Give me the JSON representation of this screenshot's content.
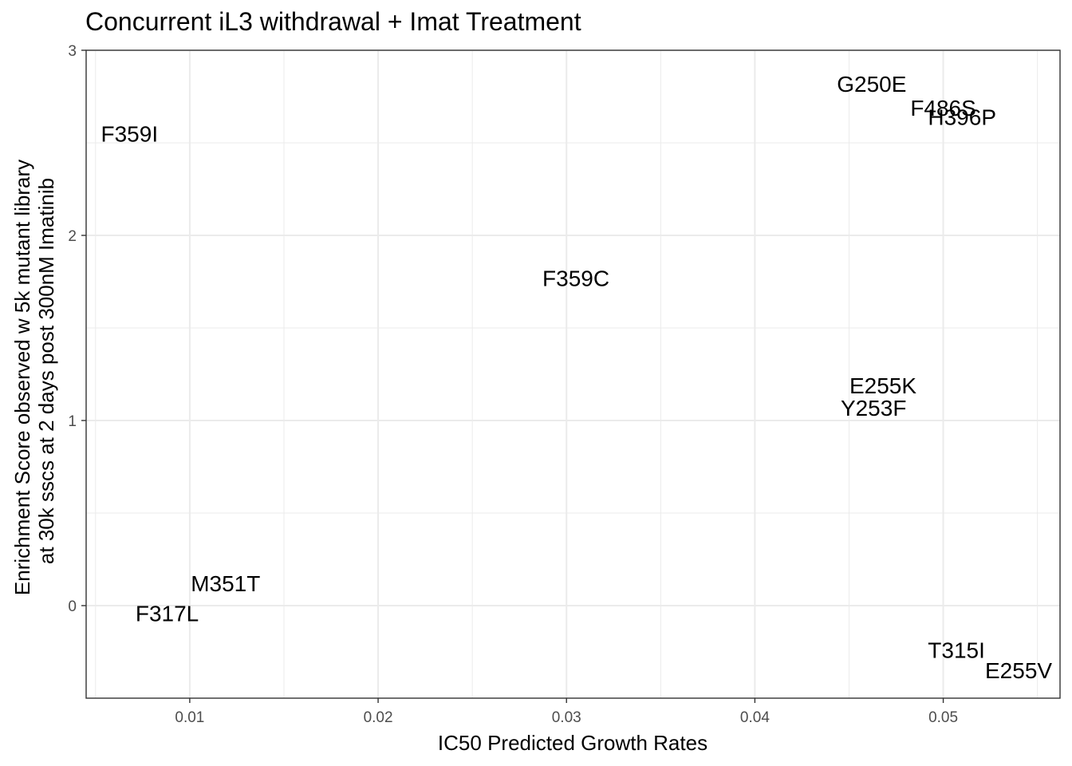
{
  "chart_data": {
    "type": "scatter",
    "title": "Concurrent iL3 withdrawal + Imat Treatment",
    "xlabel": "IC50 Predicted Growth Rates",
    "ylabel_lines": [
      "Enrichment Score observed w 5k mutant library",
      "at 30k sscs at 2 days post 300nM Imatinib"
    ],
    "xlim": [
      0.0045,
      0.0562
    ],
    "ylim": [
      -0.5,
      3.0
    ],
    "x_ticks": [
      0.01,
      0.02,
      0.03,
      0.04,
      0.05
    ],
    "x_tick_labels": [
      "0.01",
      "0.02",
      "0.03",
      "0.04",
      "0.05"
    ],
    "x_minor_ticks": [
      0.005,
      0.015,
      0.025,
      0.035,
      0.045,
      0.055
    ],
    "y_ticks": [
      0,
      1,
      2,
      3
    ],
    "y_tick_labels": [
      "0",
      "1",
      "2",
      "3"
    ],
    "y_minor_ticks": [
      -0.5,
      0.5,
      1.5,
      2.5
    ],
    "grid": true,
    "points": [
      {
        "label": "F359I",
        "x": 0.0068,
        "y": 2.55
      },
      {
        "label": "G250E",
        "x": 0.0462,
        "y": 2.82
      },
      {
        "label": "F486S",
        "x": 0.05,
        "y": 2.69
      },
      {
        "label": "H396P",
        "x": 0.051,
        "y": 2.64
      },
      {
        "label": "F359C",
        "x": 0.0305,
        "y": 1.77
      },
      {
        "label": "E255K",
        "x": 0.0468,
        "y": 1.19
      },
      {
        "label": "Y253F",
        "x": 0.0463,
        "y": 1.07
      },
      {
        "label": "M351T",
        "x": 0.0119,
        "y": 0.12
      },
      {
        "label": "F317L",
        "x": 0.0088,
        "y": -0.04
      },
      {
        "label": "T315I",
        "x": 0.0507,
        "y": -0.24
      },
      {
        "label": "E255V",
        "x": 0.054,
        "y": -0.35
      }
    ]
  }
}
